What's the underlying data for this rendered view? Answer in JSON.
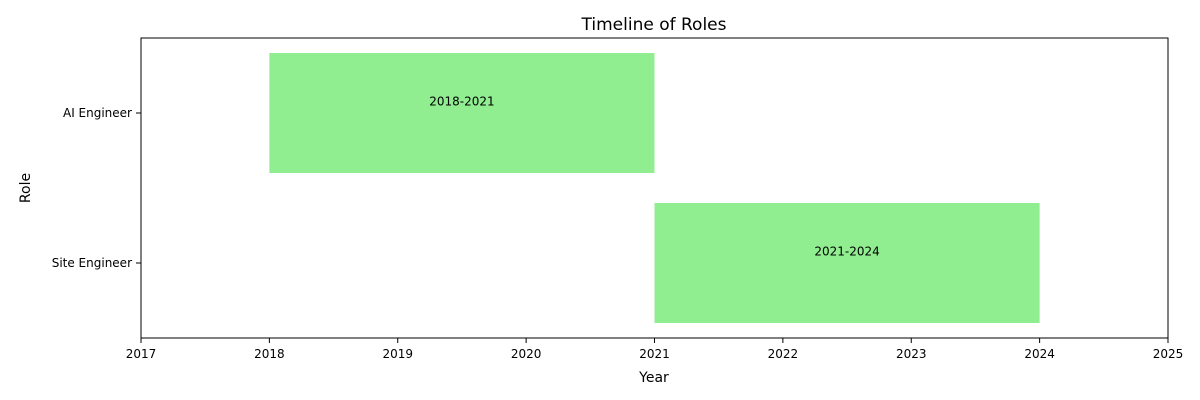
{
  "chart_data": {
    "type": "bar",
    "orientation": "horizontal",
    "title": "Timeline of Roles",
    "xlabel": "Year",
    "ylabel": "Role",
    "xlim": [
      2017,
      2025
    ],
    "xticks": [
      2017,
      2018,
      2019,
      2020,
      2021,
      2022,
      2023,
      2024,
      2025
    ],
    "categories": [
      "AI Engineer",
      "Site Engineer"
    ],
    "bars": [
      {
        "category": "AI Engineer",
        "start": 2018,
        "end": 2021,
        "label": "2018-2021"
      },
      {
        "category": "Site Engineer",
        "start": 2021,
        "end": 2024,
        "label": "2021-2024"
      }
    ],
    "bar_color": "#90ee90",
    "grid": false,
    "legend": "none"
  }
}
